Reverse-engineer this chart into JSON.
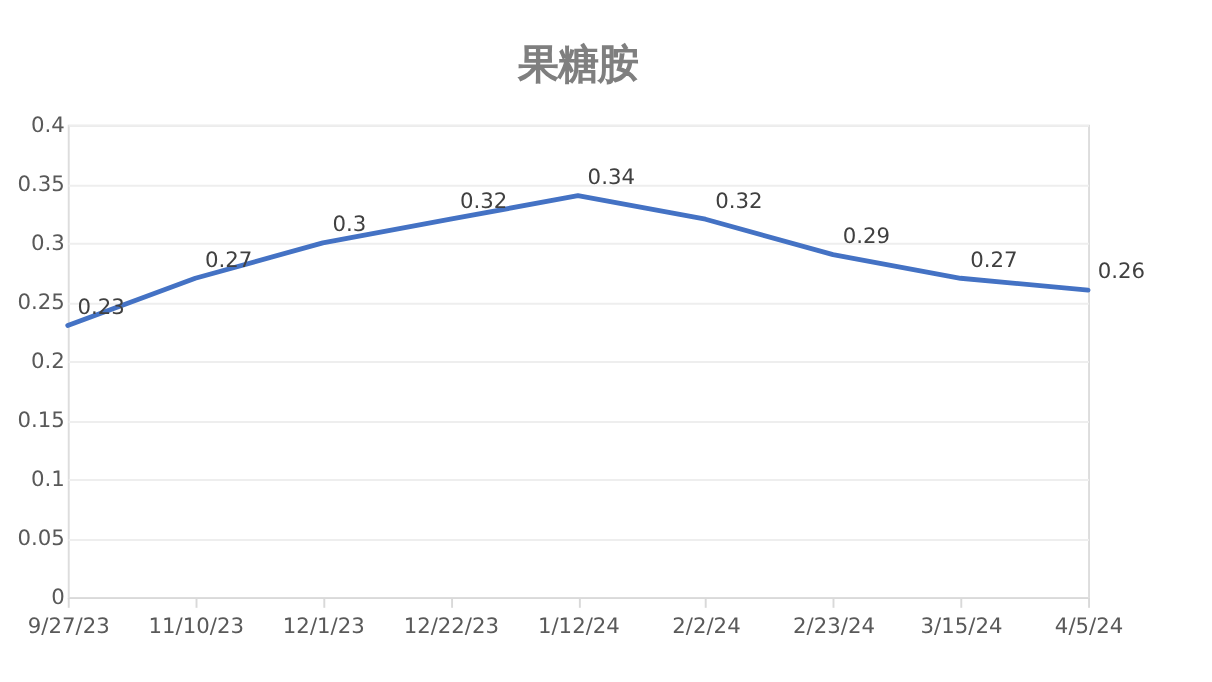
{
  "chart_data": {
    "type": "line",
    "title": "果糖胺",
    "categories": [
      "9/27/23",
      "11/10/23",
      "12/1/23",
      "12/22/23",
      "1/12/24",
      "2/2/24",
      "2/23/24",
      "3/15/24",
      "4/5/24"
    ],
    "series": [
      {
        "color": "#4472c4",
        "values": [
          0.23,
          0.27,
          0.3,
          0.32,
          0.34,
          0.32,
          0.29,
          0.27,
          0.26
        ]
      }
    ],
    "ylim": [
      0,
      0.4
    ],
    "yticks": [
      0,
      0.05,
      0.1,
      0.15,
      0.2,
      0.25,
      0.3,
      0.35,
      0.4
    ],
    "grid": "y",
    "marker": "none",
    "line_style": "solid",
    "data_labels": true
  }
}
